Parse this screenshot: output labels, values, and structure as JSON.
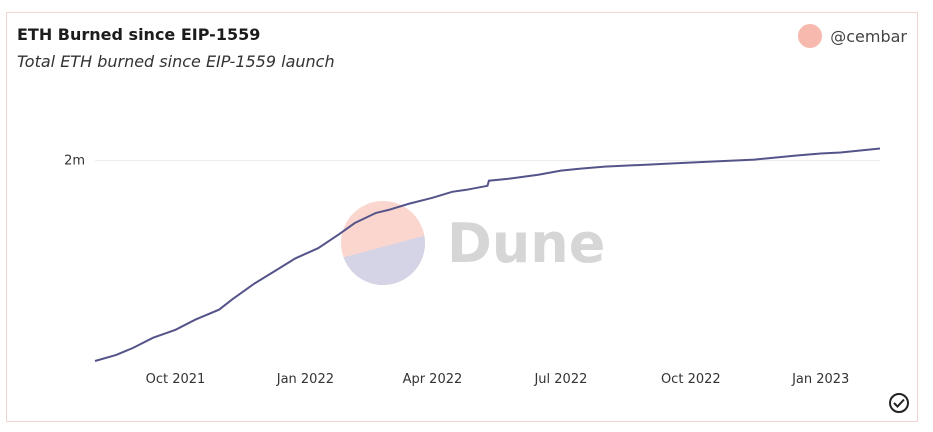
{
  "header": {
    "title": "ETH Burned since EIP-1559",
    "subtitle": "Total ETH burned since EIP-1559 launch",
    "author": "@cembar"
  },
  "watermark": {
    "text": "Dune",
    "color": "#d6d6d6",
    "logo_top": "#fad6cf",
    "logo_bottom": "#d4d4e6"
  },
  "colors": {
    "line": "#55548a",
    "grid": "#ebebeb",
    "avatar": "#f7b8ad"
  },
  "status_icon": "check-circle-icon",
  "chart_data": {
    "type": "line",
    "title": "ETH Burned since EIP-1559",
    "subtitle": "Total ETH burned since EIP-1559 launch",
    "xlabel": "",
    "ylabel": "",
    "x_ticks": [
      "Oct 2021",
      "Jan 2022",
      "Apr 2022",
      "Jul 2022",
      "Oct 2022",
      "Jan 2023"
    ],
    "y_ticks": [
      {
        "value": 2000000,
        "label": "2m"
      }
    ],
    "xlim": [
      "2021-08-05",
      "2023-02-12"
    ],
    "ylim": [
      0,
      2800000
    ],
    "grid": true,
    "legend": "none",
    "series": [
      {
        "x": [
          "2021-08-05",
          "2021-08-20",
          "2021-09-01",
          "2021-09-15",
          "2021-10-01",
          "2021-10-15",
          "2021-11-01",
          "2021-11-10",
          "2021-11-25",
          "2021-12-10",
          "2021-12-25",
          "2022-01-10",
          "2022-01-25",
          "2022-02-05",
          "2022-02-20",
          "2022-03-01",
          "2022-03-15",
          "2022-04-01",
          "2022-04-15",
          "2022-04-25",
          "2022-05-10",
          "2022-05-11",
          "2022-05-25",
          "2022-06-15",
          "2022-07-01",
          "2022-07-15",
          "2022-08-01",
          "2022-09-01",
          "2022-09-15",
          "2022-10-15",
          "2022-11-15",
          "2022-12-15",
          "2023-01-01",
          "2023-01-15",
          "2023-02-12"
        ],
        "y": [
          10000,
          70000,
          140000,
          240000,
          320000,
          420000,
          520000,
          620000,
          770000,
          900000,
          1030000,
          1130000,
          1270000,
          1380000,
          1480000,
          1510000,
          1570000,
          1630000,
          1690000,
          1710000,
          1750000,
          1800000,
          1820000,
          1860000,
          1900000,
          1920000,
          1940000,
          1960000,
          1970000,
          1990000,
          2010000,
          2050000,
          2070000,
          2080000,
          2120000
        ]
      }
    ]
  }
}
